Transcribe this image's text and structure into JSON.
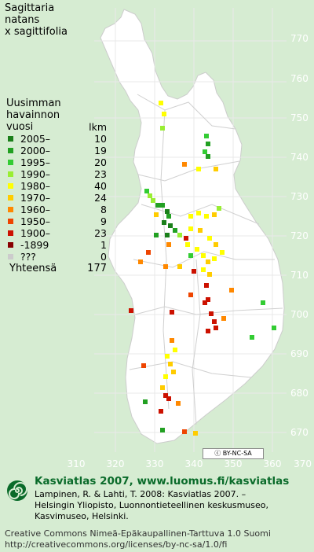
{
  "title": "Sagittaria\nnatans\nx sagittifolia",
  "legend": {
    "header": "Uusimman\nhavainnon\nvuosi",
    "count_header": "lkm",
    "rows": [
      {
        "label": "2005–",
        "count": "10",
        "color": "#1a7f1a"
      },
      {
        "label": "2000–",
        "count": "19",
        "color": "#22a022"
      },
      {
        "label": "1995–",
        "count": "20",
        "color": "#33cc33"
      },
      {
        "label": "1990–",
        "count": "23",
        "color": "#99ee33"
      },
      {
        "label": "1980–",
        "count": "40",
        "color": "#ffff00"
      },
      {
        "label": "1970–",
        "count": "24",
        "color": "#ffcc00"
      },
      {
        "label": "1960–",
        "count": "8",
        "color": "#ff8800"
      },
      {
        "label": "1950–",
        "count": "9",
        "color": "#ee4400"
      },
      {
        "label": "1900–",
        "count": "23",
        "color": "#cc1100"
      },
      {
        "label": "-1899",
        "count": "1",
        "color": "#880000"
      },
      {
        "label": "???",
        "count": "0",
        "color": "#cccccc"
      }
    ],
    "total_label": "Yhteensä",
    "total_value": "177"
  },
  "axes": {
    "y_ticks": [
      "770",
      "760",
      "750",
      "740",
      "730",
      "720",
      "710",
      "700",
      "690",
      "680",
      "670"
    ],
    "x_ticks": [
      "310",
      "320",
      "330",
      "340",
      "350",
      "360",
      "370"
    ]
  },
  "license_badge": "BY-NC-SA",
  "footer": {
    "heading": "Kasviatlas 2007, www.luomus.fi/kasviatlas",
    "citation": "Lampinen, R. & Lahti, T. 2008: Kasviatlas 2007. –\nHelsingin Yliopisto, Luonnontieteellinen keskusmuseo,\nKasvimuseo, Helsinki.",
    "license": "Creative Commons Nimeä-Epäkaupallinen-Tarttuva 1.0 Suomi\nhttp://creativecommons.org/licenses/by-nc-sa/1.0/fi"
  },
  "colors": {
    "map_bg": "#d6ecd2",
    "land": "#ffffff",
    "grid": "#e6e6e6",
    "footer_accent": "#0a6b2a"
  },
  "icons": [
    "spiral-logo-icon",
    "cc-icon"
  ]
}
